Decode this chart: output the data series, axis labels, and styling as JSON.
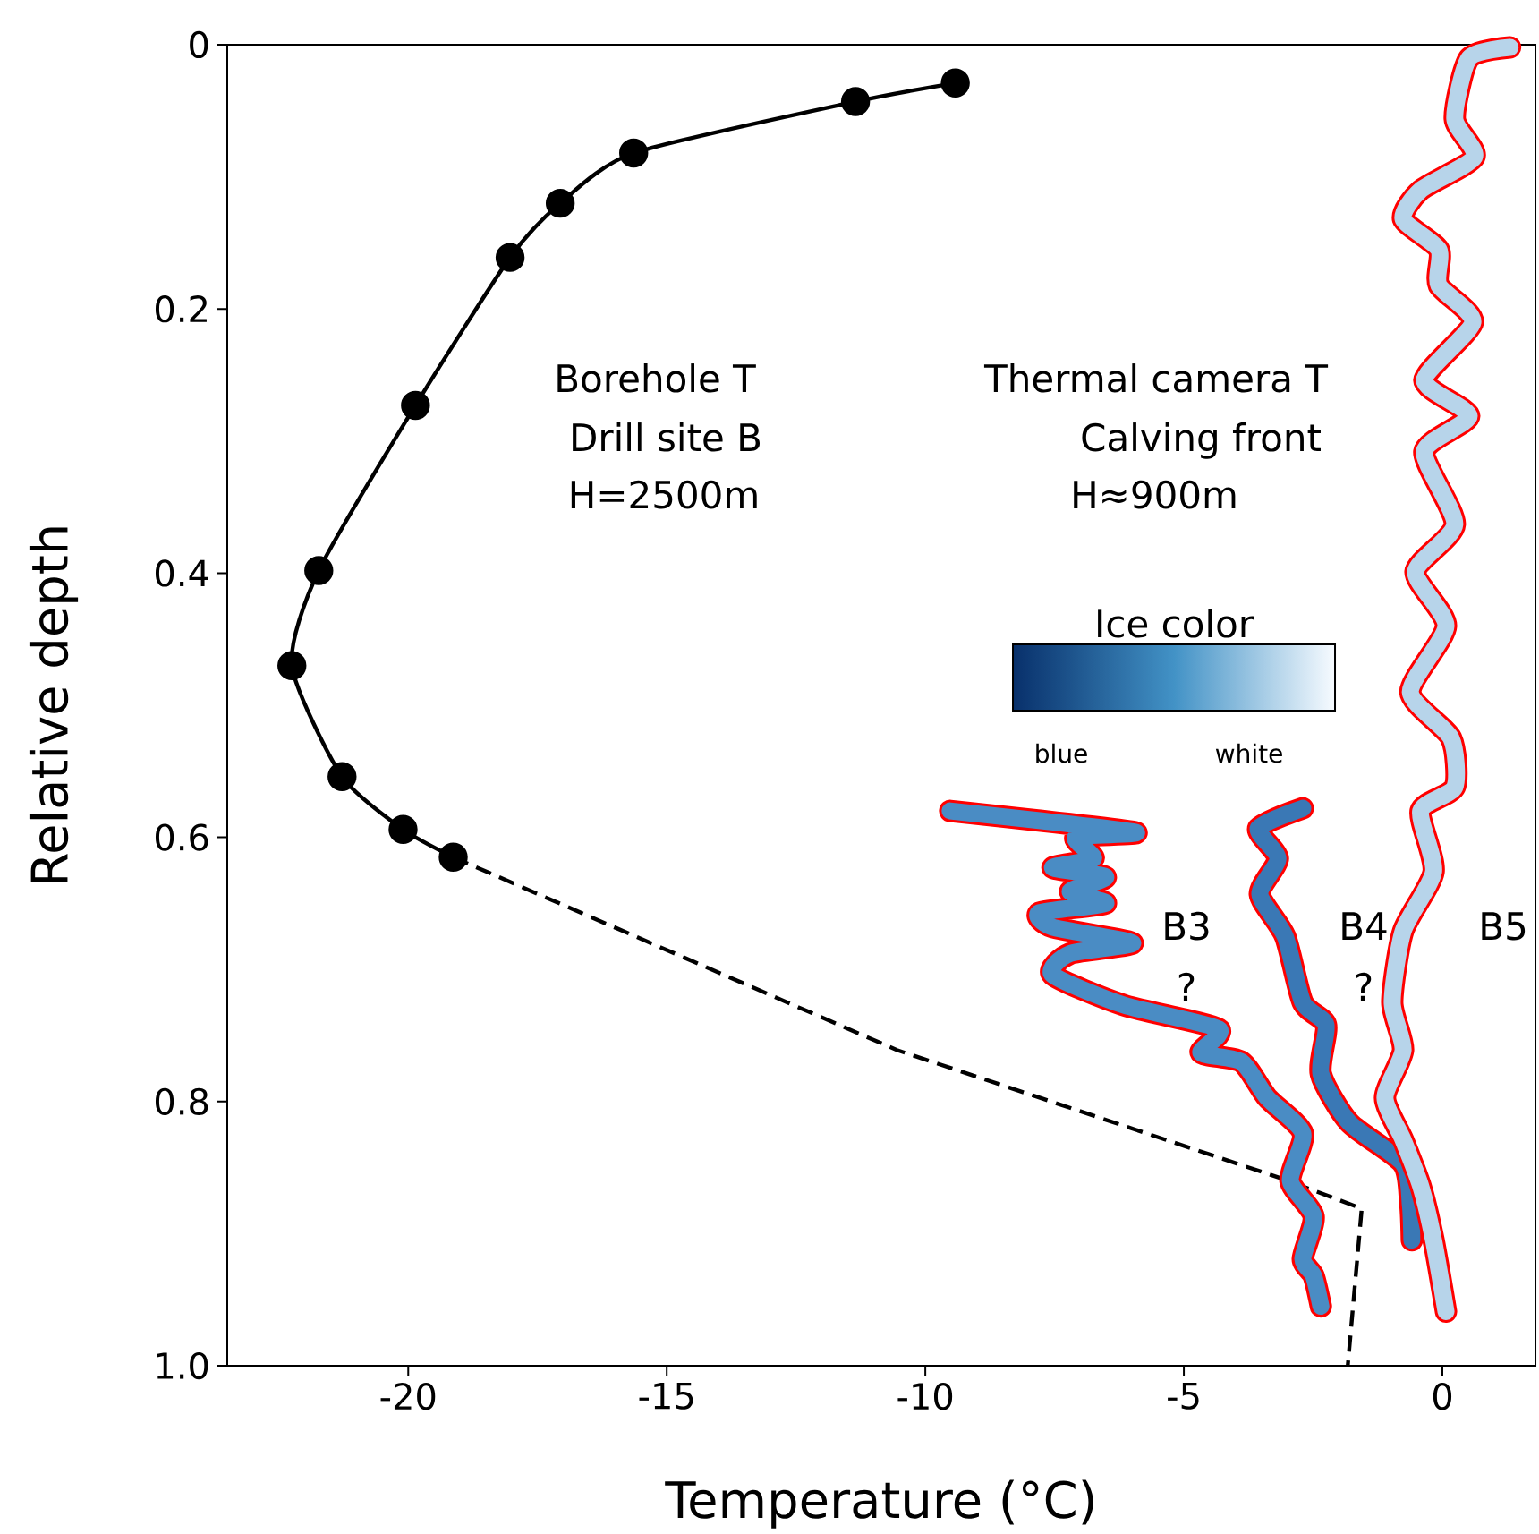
{
  "chart_data": {
    "type": "line",
    "xlabel": "Temperature (°C)",
    "ylabel": "Relative depth",
    "xlim": [
      -23.5,
      1.8
    ],
    "ylim": [
      1.0,
      0
    ],
    "xticks": [
      -20,
      -15,
      -10,
      -5,
      0
    ],
    "yticks": [
      0,
      0.2,
      0.4,
      0.6,
      0.8,
      {
        "value": 1.0,
        "label": "1.0"
      }
    ],
    "series": [
      {
        "color": "#000000",
        "marker": "circle",
        "line_style": "solid",
        "x": [
          -9.42,
          -11.35,
          -15.64,
          -17.06,
          -18.03,
          -19.86,
          -21.73,
          -22.25,
          -21.28,
          -20.1,
          -19.13
        ],
        "values": [
          0.029,
          0.043,
          0.082,
          0.12,
          0.161,
          0.273,
          0.398,
          0.47,
          0.554,
          0.594,
          0.615
        ]
      },
      {
        "color": "#000000",
        "line_style": "dashed",
        "x": [
          -19.13,
          -10.55,
          -3.05,
          -1.56,
          -1.83
        ],
        "values": [
          0.615,
          0.761,
          0.859,
          0.881,
          1.0
        ]
      },
      {
        "color": "#4a8cc4",
        "line_style": "solid",
        "x": [
          -9.52,
          -5.95,
          -7.09,
          -6.75,
          -7.54,
          -6.51,
          -7.2,
          -6.51,
          -7.79,
          -7.54,
          -5.99,
          -7.2,
          -7.54,
          -6.16,
          -4.33,
          -4.67,
          -3.88,
          -3.39,
          -2.7,
          -2.94,
          -2.49,
          -2.7,
          -2.49,
          -2.35
        ],
        "values": [
          0.58,
          0.596,
          0.6,
          0.616,
          0.623,
          0.63,
          0.641,
          0.65,
          0.657,
          0.668,
          0.68,
          0.688,
          0.704,
          0.727,
          0.745,
          0.763,
          0.77,
          0.797,
          0.824,
          0.86,
          0.887,
          0.919,
          0.932,
          0.955
        ]
      },
      {
        "color": "#3a78b5",
        "line_style": "solid",
        "x": [
          -2.7,
          -3.56,
          -3.18,
          -3.53,
          -3.04,
          -2.7,
          -2.25,
          -2.35,
          -1.8,
          -0.76,
          -0.62,
          -0.59
        ],
        "values": [
          0.578,
          0.593,
          0.616,
          0.643,
          0.675,
          0.725,
          0.742,
          0.779,
          0.816,
          0.847,
          0.878,
          0.905
        ]
      },
      {
        "color": "#b7d4ea",
        "line_style": "solid",
        "x": [
          1.31,
          0.52,
          0.24,
          0.62,
          -0.42,
          -0.76,
          -0.07,
          -0.07,
          0.59,
          -0.35,
          0.52,
          -0.35,
          0.24,
          -0.52,
          0.07,
          -0.62,
          0.17,
          0.24,
          -0.42,
          -0.17,
          -0.76,
          -0.97,
          -0.76,
          -1.11,
          -0.76,
          -0.42,
          -0.17,
          0.07
        ],
        "values": [
          0.002,
          0.01,
          0.056,
          0.085,
          0.11,
          0.132,
          0.155,
          0.182,
          0.21,
          0.254,
          0.281,
          0.308,
          0.363,
          0.399,
          0.44,
          0.49,
          0.525,
          0.562,
          0.58,
          0.626,
          0.671,
          0.725,
          0.761,
          0.797,
          0.829,
          0.864,
          0.905,
          0.959
        ]
      }
    ],
    "annotations": [
      "Borehole T",
      "Drill site B",
      "H=2500m",
      "Thermal camera T",
      "Calving front",
      "H≈900m",
      "B3",
      "?",
      "B4",
      "?",
      "B5",
      "Ice color",
      "blue",
      "white"
    ]
  }
}
